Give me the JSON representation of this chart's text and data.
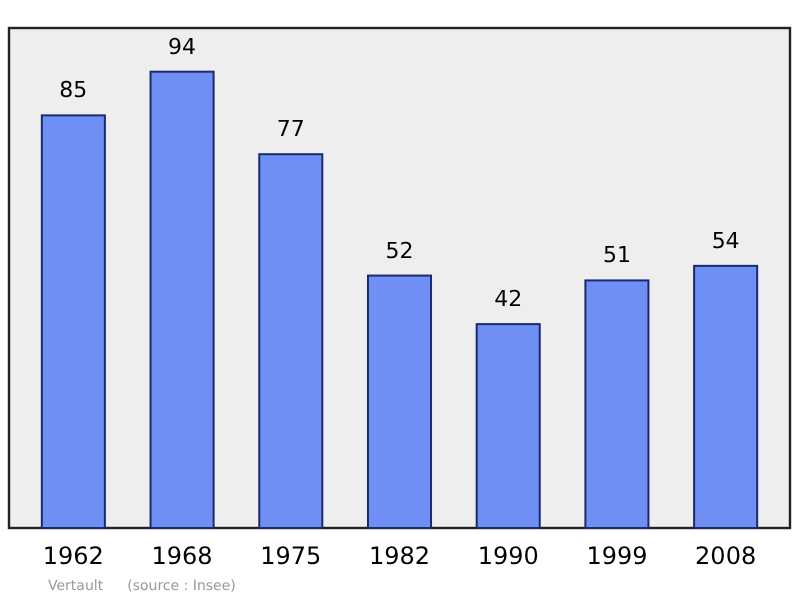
{
  "chart_data": {
    "type": "bar",
    "categories": [
      "1962",
      "1968",
      "1975",
      "1982",
      "1990",
      "1999",
      "2008"
    ],
    "values": [
      85,
      94,
      77,
      52,
      42,
      51,
      54
    ],
    "color": "#6f8ff5",
    "data_labels": true,
    "ylim": [
      0,
      103
    ],
    "tick_labels": "x",
    "annotations": [
      "Vertault",
      "(source : Insee)"
    ]
  }
}
